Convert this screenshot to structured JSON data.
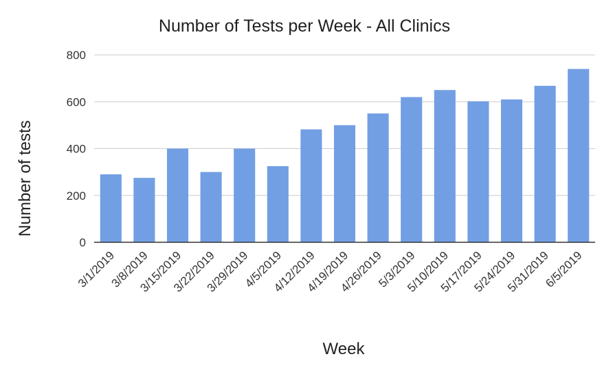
{
  "chart_data": {
    "type": "bar",
    "title": "Number of Tests per Week - All Clinics",
    "xlabel": "Week",
    "ylabel": "Number of tests",
    "categories": [
      "3/1/2019",
      "3/8/2019",
      "3/15/2019",
      "3/22/2019",
      "3/29/2019",
      "4/5/2019",
      "4/12/2019",
      "4/19/2019",
      "4/26/2019",
      "5/3/2019",
      "5/10/2019",
      "5/17/2019",
      "5/24/2019",
      "5/31/2019",
      "6/5/2019"
    ],
    "values": [
      290,
      275,
      400,
      300,
      400,
      325,
      482,
      500,
      550,
      620,
      650,
      602,
      610,
      668,
      740
    ],
    "ylim": [
      0,
      800
    ],
    "yticks": [
      "0",
      "200",
      "400",
      "600",
      "800"
    ],
    "grid": true,
    "legend": "none",
    "colors": {
      "bar": "#729fe4",
      "grid": "#cccccc",
      "baseline": "#333333"
    }
  }
}
